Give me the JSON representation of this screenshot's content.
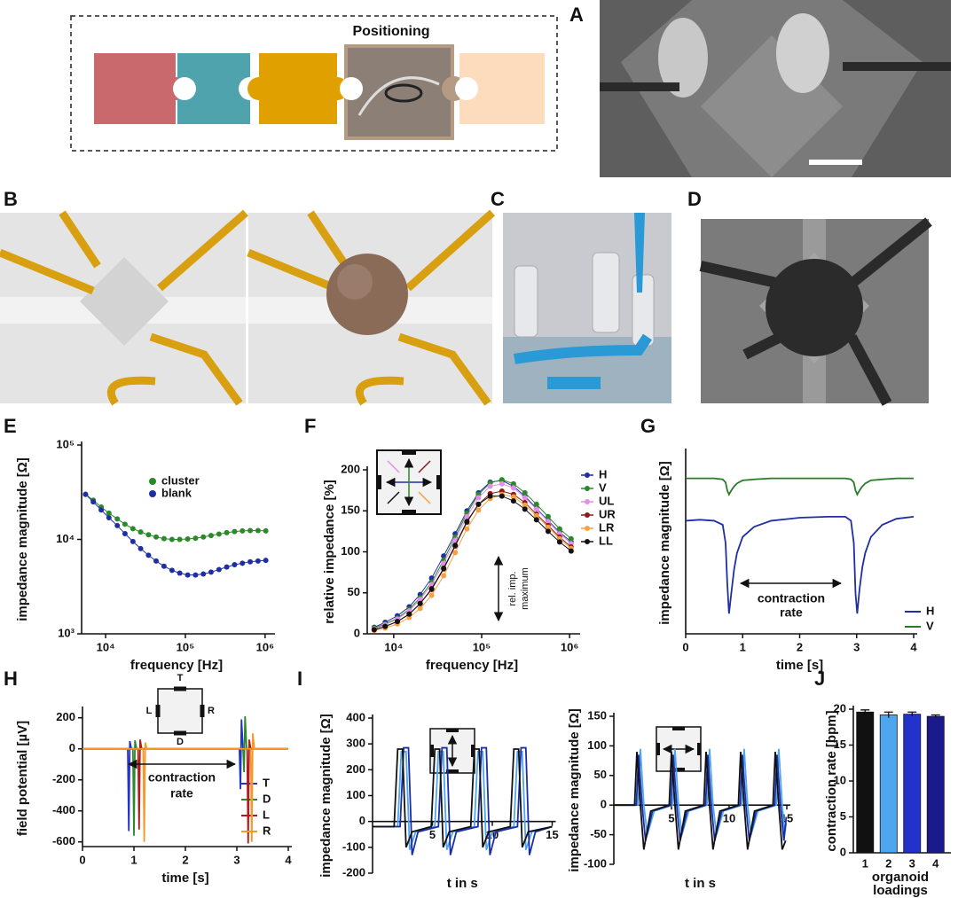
{
  "panels": [
    "A",
    "B",
    "C",
    "D",
    "E",
    "F",
    "G",
    "H",
    "I",
    "J"
  ],
  "schematic": {
    "label": "Positioning"
  },
  "chart_data": [
    {
      "type": "line",
      "xlabel": "frequency [Hz]",
      "ylabel": "impedance magnitude [Ω]",
      "xscale": "log",
      "yscale": "log",
      "markers": true,
      "legend": "upper-center",
      "xlim": [
        5000,
        1200000
      ],
      "ylim": [
        1000,
        100000
      ],
      "xticks": [
        {
          "value": 10000,
          "label": "10⁴"
        },
        {
          "value": 100000,
          "label": "10⁵"
        },
        {
          "value": 1000000,
          "label": "10⁶"
        }
      ],
      "yticks": [
        {
          "value": 1000,
          "label": "10³"
        },
        {
          "value": 10000,
          "label": "10⁴"
        },
        {
          "value": 100000,
          "label": "10⁵"
        }
      ],
      "x": [
        5600,
        7000,
        8800,
        11000,
        14000,
        17500,
        22000,
        27500,
        34500,
        43000,
        54000,
        68000,
        85000,
        107000,
        134000,
        168000,
        210000,
        264000,
        330000,
        414000,
        519000,
        650000,
        815000,
        1020000
      ],
      "series": [
        {
          "name": "cluster",
          "color": "#2a8a2a",
          "values": [
            30000,
            26000,
            22000,
            19000,
            16500,
            14500,
            13000,
            12000,
            11200,
            10600,
            10200,
            10000,
            10000,
            10100,
            10300,
            10600,
            11000,
            11400,
            11800,
            12100,
            12300,
            12400,
            12400,
            12300
          ]
        },
        {
          "name": "blank",
          "color": "#1f2fa3",
          "values": [
            30000,
            25000,
            20500,
            17000,
            14000,
            11500,
            9500,
            8000,
            6800,
            5900,
            5200,
            4700,
            4400,
            4200,
            4200,
            4300,
            4500,
            4800,
            5100,
            5400,
            5600,
            5800,
            5900,
            6000
          ]
        }
      ]
    },
    {
      "type": "line",
      "xlabel": "frequency [Hz]",
      "ylabel": "relative impedance [%]",
      "xscale": "log",
      "markers": true,
      "legend": "outside-right",
      "annotation": [
        "rel. imp.",
        "maximum"
      ],
      "xlim": [
        5000,
        1200000
      ],
      "ylim": [
        0,
        200
      ],
      "xticks": [
        {
          "value": 10000,
          "label": "10⁴"
        },
        {
          "value": 100000,
          "label": "10⁵"
        },
        {
          "value": 1000000,
          "label": "10⁶"
        }
      ],
      "yticks": [
        0,
        50,
        100,
        150,
        200
      ],
      "x": [
        6000,
        8000,
        11000,
        15000,
        20000,
        27000,
        37000,
        50000,
        68000,
        92000,
        125000,
        170000,
        230000,
        310000,
        420000,
        570000,
        770000,
        1040000
      ],
      "series": [
        {
          "name": "H",
          "color": "#1f2fa3",
          "values": [
            8,
            14,
            22,
            33,
            48,
            68,
            95,
            122,
            150,
            172,
            185,
            187,
            180,
            168,
            153,
            138,
            124,
            112
          ]
        },
        {
          "name": "V",
          "color": "#2a8a2a",
          "values": [
            7,
            12,
            19,
            30,
            44,
            63,
            90,
            118,
            147,
            170,
            184,
            188,
            183,
            172,
            158,
            143,
            128,
            116
          ]
        },
        {
          "name": "UL",
          "color": "#e58ee8",
          "values": [
            6,
            11,
            18,
            28,
            42,
            60,
            86,
            114,
            143,
            166,
            180,
            183,
            178,
            166,
            152,
            137,
            122,
            110
          ]
        },
        {
          "name": "UR",
          "color": "#8b1a1a",
          "values": [
            5,
            9,
            15,
            24,
            37,
            54,
            79,
            107,
            136,
            158,
            171,
            174,
            170,
            160,
            146,
            132,
            118,
            106
          ]
        },
        {
          "name": "LR",
          "color": "#f5a142",
          "values": [
            4,
            7,
            12,
            20,
            31,
            47,
            71,
            99,
            128,
            151,
            165,
            170,
            167,
            157,
            144,
            130,
            116,
            104
          ]
        },
        {
          "name": "LL",
          "color": "#111111",
          "values": [
            5,
            9,
            15,
            24,
            37,
            55,
            80,
            108,
            137,
            158,
            168,
            168,
            162,
            152,
            139,
            125,
            112,
            101
          ]
        }
      ]
    },
    {
      "type": "line",
      "xlabel": "time [s]",
      "ylabel": "impedance magnitude [Ω]",
      "markers": false,
      "legend": "lower-right",
      "annotation": [
        "contraction",
        "rate"
      ],
      "xlim": [
        0,
        4
      ],
      "ylim": [
        1,
        10
      ],
      "xticks": [
        0,
        1,
        2,
        3,
        4
      ],
      "x": [
        0,
        0.25,
        0.5,
        0.65,
        0.7,
        0.73,
        0.76,
        0.8,
        0.85,
        0.9,
        1.0,
        1.2,
        1.5,
        2.0,
        2.5,
        2.8,
        2.9,
        2.95,
        2.98,
        3.01,
        3.05,
        3.1,
        3.15,
        3.25,
        3.45,
        3.7,
        4.0
      ],
      "series": [
        {
          "name": "H",
          "color": "#1f2fa3",
          "values": [
            6.6,
            6.65,
            6.6,
            6.4,
            5.5,
            3.5,
            2.0,
            3.0,
            4.2,
            5.0,
            5.8,
            6.3,
            6.6,
            6.75,
            6.8,
            6.8,
            6.6,
            5.5,
            3.0,
            2.0,
            3.2,
            4.3,
            5.0,
            5.8,
            6.4,
            6.7,
            6.8
          ]
        },
        {
          "name": "V",
          "color": "#2a7a2a",
          "values": [
            8.7,
            8.7,
            8.7,
            8.65,
            8.5,
            8.1,
            7.9,
            8.1,
            8.3,
            8.45,
            8.6,
            8.65,
            8.7,
            8.7,
            8.7,
            8.7,
            8.65,
            8.5,
            8.1,
            7.9,
            8.1,
            8.3,
            8.45,
            8.6,
            8.65,
            8.7,
            8.7
          ]
        }
      ]
    },
    {
      "type": "line",
      "xlabel": "time [s]",
      "ylabel": "field potential [µV]",
      "markers": false,
      "legend": "lower-right",
      "annotation": [
        "contraction",
        "rate"
      ],
      "inset_labels": [
        "T",
        "L",
        "R",
        "D"
      ],
      "xlim": [
        0,
        4
      ],
      "ylim": [
        -630,
        250
      ],
      "xticks": [
        0,
        1,
        2,
        3,
        4
      ],
      "yticks": [
        200,
        0,
        -200,
        -400,
        -600
      ],
      "series": [
        {
          "name": "T",
          "color": "#2233cc",
          "x": [
            0,
            0.88,
            0.9,
            0.92,
            0.95,
            3.05,
            3.07,
            3.09,
            3.12,
            4
          ],
          "values": [
            0,
            0,
            -530,
            50,
            0,
            0,
            -260,
            190,
            0,
            0
          ]
        },
        {
          "name": "D",
          "color": "#2a8a2a",
          "x": [
            0,
            0.98,
            1.0,
            1.02,
            1.05,
            3.12,
            3.14,
            3.16,
            3.19,
            4
          ],
          "values": [
            0,
            0,
            -560,
            55,
            0,
            0,
            -150,
            210,
            0,
            0
          ]
        },
        {
          "name": "L",
          "color": "#b01c1c",
          "x": [
            0,
            1.08,
            1.1,
            1.12,
            1.15,
            3.2,
            3.22,
            3.24,
            3.27,
            4
          ],
          "values": [
            0,
            0,
            -520,
            60,
            0,
            0,
            -610,
            60,
            0,
            0
          ]
        },
        {
          "name": "R",
          "color": "#f59a2a",
          "x": [
            0,
            1.18,
            1.2,
            1.22,
            1.25,
            3.27,
            3.29,
            3.31,
            3.34,
            4
          ],
          "values": [
            0,
            0,
            -600,
            40,
            0,
            0,
            -600,
            100,
            0,
            0
          ]
        }
      ]
    },
    {
      "type": "line",
      "xlabel": "t in s",
      "ylabel": "impedance magnitude [Ω]",
      "markers": false,
      "x_axis_at_zero": true,
      "xlim": [
        0,
        15
      ],
      "ylim": [
        -200,
        400
      ],
      "xticks": [
        5,
        10,
        15
      ],
      "yticks": [
        -200,
        -100,
        0,
        100,
        200,
        300,
        400
      ],
      "series": [
        {
          "color": "#4da6ee",
          "x": [
            0,
            2.1,
            2.4,
            2.8,
            3.1,
            3.6,
            5.2,
            5.5,
            5.9,
            6.2,
            6.7,
            8.5,
            8.8,
            9.2,
            9.5,
            10.0,
            11.8,
            12.1,
            12.5,
            12.8,
            13.3,
            15
          ],
          "values": [
            -20,
            -20,
            270,
            270,
            -110,
            -40,
            -20,
            270,
            270,
            -110,
            -40,
            -20,
            270,
            270,
            -110,
            -40,
            -20,
            270,
            270,
            -110,
            -40,
            -20
          ]
        },
        {
          "color": "#1a2ea8",
          "x": [
            0,
            2.3,
            2.6,
            3.0,
            3.3,
            3.8,
            5.5,
            5.8,
            6.2,
            6.5,
            7.0,
            8.8,
            9.1,
            9.5,
            9.8,
            10.3,
            12.1,
            12.4,
            12.8,
            13.1,
            13.6,
            15
          ],
          "values": [
            -20,
            -20,
            285,
            285,
            -130,
            -40,
            -20,
            285,
            285,
            -130,
            -40,
            -20,
            285,
            285,
            -130,
            -40,
            -20,
            285,
            285,
            -130,
            -40,
            -20
          ]
        },
        {
          "color": "#111111",
          "x": [
            0,
            1.8,
            2.1,
            2.5,
            2.8,
            3.3,
            4.9,
            5.2,
            5.6,
            5.9,
            6.4,
            8.2,
            8.5,
            8.9,
            9.2,
            9.7,
            11.5,
            11.8,
            12.2,
            12.5,
            13.0,
            15
          ],
          "values": [
            -20,
            -20,
            280,
            280,
            -100,
            -40,
            -20,
            280,
            280,
            -100,
            -40,
            -20,
            280,
            280,
            -100,
            -40,
            -20,
            280,
            280,
            -100,
            -40,
            -20
          ]
        }
      ]
    },
    {
      "type": "line",
      "xlabel": "t in s",
      "ylabel": "impedance magnitude [Ω]",
      "markers": false,
      "x_axis_at_zero": true,
      "xlim": [
        0,
        15
      ],
      "ylim": [
        -100,
        150
      ],
      "xticks": [
        5,
        10,
        15
      ],
      "yticks": [
        -100,
        -50,
        0,
        50,
        100,
        150
      ],
      "series": [
        {
          "color": "#4da6ee",
          "x": [
            0,
            2.1,
            2.3,
            2.6,
            2.9,
            3.5,
            5.1,
            5.3,
            5.6,
            5.9,
            6.5,
            8.1,
            8.3,
            8.6,
            8.9,
            9.5,
            11.1,
            11.3,
            11.6,
            11.9,
            12.5,
            14.1,
            14.3,
            14.6,
            14.8,
            14.95
          ],
          "values": [
            0,
            0,
            95,
            0,
            -50,
            -10,
            0,
            95,
            0,
            -50,
            -10,
            0,
            95,
            0,
            -50,
            -10,
            0,
            95,
            0,
            -50,
            -10,
            0,
            95,
            0,
            -50,
            -30
          ]
        },
        {
          "color": "#1a2ea8",
          "x": [
            0,
            1.95,
            2.15,
            2.45,
            2.75,
            3.35,
            4.95,
            5.15,
            5.45,
            5.75,
            6.35,
            7.95,
            8.15,
            8.45,
            8.75,
            9.35,
            10.95,
            11.15,
            11.45,
            11.75,
            12.35,
            13.95,
            14.15,
            14.45,
            14.75,
            14.95
          ],
          "values": [
            0,
            0,
            85,
            0,
            -60,
            -10,
            0,
            85,
            0,
            -60,
            -10,
            0,
            85,
            0,
            -60,
            -10,
            0,
            85,
            0,
            -60,
            -10,
            0,
            85,
            0,
            -60,
            -20
          ]
        },
        {
          "color": "#111111",
          "x": [
            0,
            1.8,
            2.0,
            2.3,
            2.6,
            3.2,
            4.8,
            5.0,
            5.3,
            5.6,
            6.2,
            7.8,
            8.0,
            8.3,
            8.6,
            9.2,
            10.8,
            11.0,
            11.3,
            11.6,
            12.2,
            13.8,
            14.0,
            14.3,
            14.6,
            14.9
          ],
          "values": [
            0,
            0,
            90,
            0,
            -75,
            -10,
            0,
            90,
            0,
            -75,
            -10,
            0,
            90,
            0,
            -75,
            -10,
            0,
            90,
            0,
            -75,
            -10,
            0,
            90,
            0,
            -75,
            -60
          ]
        }
      ]
    },
    {
      "type": "bar",
      "xlabel": [
        "organoid",
        "loadings"
      ],
      "ylabel": "contraction rate [bpm]",
      "ylim": [
        0,
        20
      ],
      "yticks": [
        0,
        5,
        10,
        15,
        20
      ],
      "categories": [
        "1",
        "2",
        "3",
        "4"
      ],
      "values": [
        19.6,
        19.2,
        19.3,
        19.0
      ],
      "errors": [
        0.3,
        0.4,
        0.3,
        0.2
      ],
      "colors": [
        "#111111",
        "#4da6ee",
        "#2233cc",
        "#1a1a8c"
      ]
    }
  ]
}
